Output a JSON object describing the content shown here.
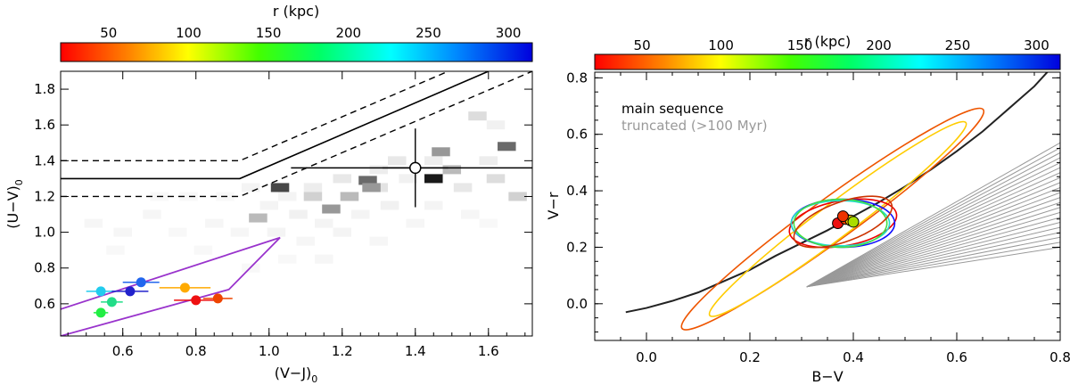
{
  "chart_data": [
    {
      "type": "scatter",
      "panel": "left",
      "title": "",
      "xlabel": "(V−J)",
      "xlabel_sub": "0",
      "ylabel": "(U−V)",
      "ylabel_sub": "0",
      "xlim": [
        0.43,
        1.72
      ],
      "ylim": [
        0.42,
        1.9
      ],
      "xticks": [
        "0.6",
        "0.8",
        "1.0",
        "1.2",
        "1.4",
        "1.6"
      ],
      "xtick_values": [
        0.6,
        0.8,
        1.0,
        1.2,
        1.4,
        1.6
      ],
      "yticks": [
        "0.6",
        "0.8",
        "1.0",
        "1.2",
        "1.4",
        "1.6",
        "1.8"
      ],
      "ytick_values": [
        0.6,
        0.8,
        1.0,
        1.2,
        1.4,
        1.6,
        1.8
      ],
      "colorbar": {
        "label": "r (kpc)",
        "range": [
          20,
          315
        ],
        "ticks": [
          "50",
          "100",
          "150",
          "200",
          "250",
          "300"
        ],
        "tick_values": [
          50,
          100,
          150,
          200,
          250,
          300
        ]
      },
      "quiescent_boundary_solid": [
        [
          0.43,
          1.3
        ],
        [
          0.92,
          1.3
        ],
        [
          1.6,
          1.9
        ]
      ],
      "quiescent_boundary_dash_upper": [
        [
          0.43,
          1.4
        ],
        [
          0.92,
          1.4
        ],
        [
          1.49,
          1.9
        ]
      ],
      "quiescent_boundary_dash_lower": [
        [
          0.43,
          1.2
        ],
        [
          0.92,
          1.2
        ],
        [
          1.72,
          1.9
        ]
      ],
      "starburst_region": [
        [
          0.43,
          0.57
        ],
        [
          1.03,
          0.97
        ],
        [
          0.89,
          0.68
        ],
        [
          0.43,
          0.42
        ]
      ],
      "starburst_color": "#9933cc",
      "crosshair_point": {
        "x": 1.4,
        "y": 1.36,
        "xerr": 0.09,
        "yerr": 0.22,
        "hline_range": [
          1.06,
          1.72
        ]
      },
      "density_cells": [
        {
          "x": 0.7,
          "y": 1.2,
          "w": 0.03
        },
        {
          "x": 0.78,
          "y": 1.2,
          "w": 0.03
        },
        {
          "x": 0.88,
          "y": 1.2,
          "w": 0.03
        },
        {
          "x": 0.95,
          "y": 1.25,
          "w": 0.05
        },
        {
          "x": 1.05,
          "y": 1.2,
          "w": 0.05
        },
        {
          "x": 1.12,
          "y": 1.25,
          "w": 0.08
        },
        {
          "x": 1.2,
          "y": 1.3,
          "w": 0.1
        },
        {
          "x": 1.22,
          "y": 1.2,
          "w": 0.06
        },
        {
          "x": 1.3,
          "y": 1.35,
          "w": 0.08
        },
        {
          "x": 1.3,
          "y": 1.25,
          "w": 0.12
        },
        {
          "x": 1.35,
          "y": 1.4,
          "w": 0.1
        },
        {
          "x": 1.38,
          "y": 1.3,
          "w": 0.06
        },
        {
          "x": 1.45,
          "y": 1.4,
          "w": 0.08
        },
        {
          "x": 1.5,
          "y": 1.35,
          "w": 0.3
        },
        {
          "x": 1.53,
          "y": 1.25,
          "w": 0.1
        },
        {
          "x": 1.6,
          "y": 1.4,
          "w": 0.08
        },
        {
          "x": 1.62,
          "y": 1.3,
          "w": 0.15
        },
        {
          "x": 1.57,
          "y": 1.65,
          "w": 0.15
        },
        {
          "x": 1.62,
          "y": 1.6,
          "w": 0.06
        },
        {
          "x": 1.65,
          "y": 1.48,
          "w": 0.65
        },
        {
          "x": 1.68,
          "y": 1.2,
          "w": 0.2
        },
        {
          "x": 1.27,
          "y": 1.29,
          "w": 0.65
        },
        {
          "x": 1.28,
          "y": 1.25,
          "w": 0.45
        },
        {
          "x": 1.03,
          "y": 1.25,
          "w": 0.8
        },
        {
          "x": 1.47,
          "y": 1.45,
          "w": 0.45
        },
        {
          "x": 1.45,
          "y": 1.3,
          "w": 1.0
        },
        {
          "x": 1.17,
          "y": 1.13,
          "w": 0.45
        },
        {
          "x": 0.97,
          "y": 1.08,
          "w": 0.3
        },
        {
          "x": 1.22,
          "y": 1.2,
          "w": 0.3
        },
        {
          "x": 1.12,
          "y": 1.2,
          "w": 0.2
        },
        {
          "x": 1.0,
          "y": 1.15,
          "w": 0.05
        },
        {
          "x": 1.08,
          "y": 1.1,
          "w": 0.06
        },
        {
          "x": 1.15,
          "y": 1.05,
          "w": 0.05
        },
        {
          "x": 1.25,
          "y": 1.1,
          "w": 0.05
        },
        {
          "x": 1.33,
          "y": 1.15,
          "w": 0.06
        },
        {
          "x": 0.52,
          "y": 1.05,
          "w": 0.04
        },
        {
          "x": 0.6,
          "y": 1.0,
          "w": 0.04
        },
        {
          "x": 0.68,
          "y": 1.1,
          "w": 0.04
        },
        {
          "x": 0.75,
          "y": 1.0,
          "w": 0.03
        },
        {
          "x": 0.85,
          "y": 1.05,
          "w": 0.04
        },
        {
          "x": 0.92,
          "y": 1.0,
          "w": 0.04
        },
        {
          "x": 1.02,
          "y": 1.0,
          "w": 0.05
        },
        {
          "x": 1.1,
          "y": 0.95,
          "w": 0.04
        },
        {
          "x": 1.2,
          "y": 1.0,
          "w": 0.05
        },
        {
          "x": 1.3,
          "y": 0.95,
          "w": 0.04
        },
        {
          "x": 0.58,
          "y": 0.9,
          "w": 0.03
        },
        {
          "x": 0.82,
          "y": 0.9,
          "w": 0.03
        },
        {
          "x": 1.05,
          "y": 0.85,
          "w": 0.03
        },
        {
          "x": 1.15,
          "y": 0.85,
          "w": 0.04
        },
        {
          "x": 0.95,
          "y": 0.8,
          "w": 0.03
        },
        {
          "x": 1.4,
          "y": 1.05,
          "w": 0.04
        },
        {
          "x": 1.45,
          "y": 1.15,
          "w": 0.05
        },
        {
          "x": 1.55,
          "y": 1.1,
          "w": 0.04
        },
        {
          "x": 1.6,
          "y": 1.05,
          "w": 0.03
        }
      ],
      "points": [
        {
          "x": 0.54,
          "y": 0.67,
          "xerr": 0.04,
          "color": "#22ccee",
          "r": 279
        },
        {
          "x": 0.62,
          "y": 0.67,
          "xerr": 0.05,
          "color": "#2222cc",
          "r": 300
        },
        {
          "x": 0.65,
          "y": 0.72,
          "xerr": 0.05,
          "color": "#2266ee",
          "r": 290
        },
        {
          "x": 0.57,
          "y": 0.61,
          "xerr": 0.03,
          "color": "#22dd88",
          "r": 230
        },
        {
          "x": 0.54,
          "y": 0.55,
          "xerr": 0.02,
          "color": "#22ee44",
          "r": 200
        },
        {
          "x": 0.77,
          "y": 0.69,
          "xerr": 0.07,
          "color": "#ffaa00",
          "r": 90
        },
        {
          "x": 0.8,
          "y": 0.62,
          "xerr": 0.06,
          "color": "#ee1111",
          "r": 45
        },
        {
          "x": 0.86,
          "y": 0.63,
          "xerr": 0.04,
          "color": "#ee4400",
          "r": 60
        }
      ]
    },
    {
      "type": "scatter",
      "panel": "right",
      "title": "",
      "xlabel": "B−V",
      "ylabel": "V−r",
      "xlim": [
        -0.1,
        0.8
      ],
      "ylim": [
        -0.13,
        0.82
      ],
      "xticks": [
        "0.0",
        "0.2",
        "0.4",
        "0.6",
        "0.8"
      ],
      "xtick_values": [
        0.0,
        0.2,
        0.4,
        0.6,
        0.8
      ],
      "yticks": [
        "0.0",
        "0.2",
        "0.4",
        "0.6",
        "0.8"
      ],
      "ytick_values": [
        0.0,
        0.2,
        0.4,
        0.6,
        0.8
      ],
      "colorbar": {
        "label": "r (kpc)",
        "range": [
          20,
          315
        ],
        "ticks": [
          "50",
          "100",
          "150",
          "200",
          "250",
          "300"
        ],
        "tick_values": [
          50,
          100,
          150,
          200,
          250,
          300
        ]
      },
      "legend": [
        {
          "label": "main sequence",
          "color": "#222222"
        },
        {
          "label": "truncated (>100 Myr)",
          "color": "#999999"
        }
      ],
      "main_sequence_curve": [
        [
          -0.04,
          -0.03
        ],
        [
          0.0,
          -0.015
        ],
        [
          0.05,
          0.01
        ],
        [
          0.1,
          0.04
        ],
        [
          0.15,
          0.08
        ],
        [
          0.2,
          0.12
        ],
        [
          0.25,
          0.17
        ],
        [
          0.3,
          0.215
        ],
        [
          0.35,
          0.26
        ],
        [
          0.4,
          0.31
        ],
        [
          0.45,
          0.36
        ],
        [
          0.5,
          0.415
        ],
        [
          0.55,
          0.475
        ],
        [
          0.6,
          0.54
        ],
        [
          0.65,
          0.61
        ],
        [
          0.7,
          0.69
        ],
        [
          0.75,
          0.77
        ],
        [
          0.78,
          0.83
        ]
      ],
      "truncated_fan": {
        "origin": [
          0.31,
          0.06
        ],
        "x_end": 0.8,
        "y_end_range": [
          0.2,
          0.57
        ],
        "n_lines": 22,
        "color": "#999999"
      },
      "ellipses": [
        {
          "cx": 0.36,
          "cy": 0.3,
          "a": 0.36,
          "b": 0.075,
          "angle_deg": 36,
          "color": "#ee5500"
        },
        {
          "cx": 0.37,
          "cy": 0.3,
          "a": 0.31,
          "b": 0.06,
          "angle_deg": 37,
          "color": "#ffcc00"
        },
        {
          "cx": 0.38,
          "cy": 0.285,
          "a": 0.105,
          "b": 0.08,
          "angle_deg": 10,
          "color": "#ee0000"
        },
        {
          "cx": 0.38,
          "cy": 0.285,
          "a": 0.1,
          "b": 0.085,
          "angle_deg": 0,
          "color": "#1111ff"
        },
        {
          "cx": 0.375,
          "cy": 0.285,
          "a": 0.095,
          "b": 0.08,
          "angle_deg": 0,
          "color": "#22ddcc"
        },
        {
          "cx": 0.375,
          "cy": 0.285,
          "a": 0.09,
          "b": 0.085,
          "angle_deg": 0,
          "color": "#44dd44"
        },
        {
          "cx": 0.38,
          "cy": 0.29,
          "a": 0.1,
          "b": 0.07,
          "angle_deg": 20,
          "color": "#cc3300"
        }
      ],
      "points": [
        {
          "x": 0.37,
          "y": 0.285,
          "color": "#ee1111"
        },
        {
          "x": 0.385,
          "y": 0.3,
          "color": "#ee4400"
        },
        {
          "x": 0.395,
          "y": 0.295,
          "color": "#ffcc00"
        },
        {
          "x": 0.38,
          "y": 0.31,
          "color": "#ee3300"
        },
        {
          "x": 0.4,
          "y": 0.29,
          "color": "#aadd00"
        }
      ]
    }
  ]
}
